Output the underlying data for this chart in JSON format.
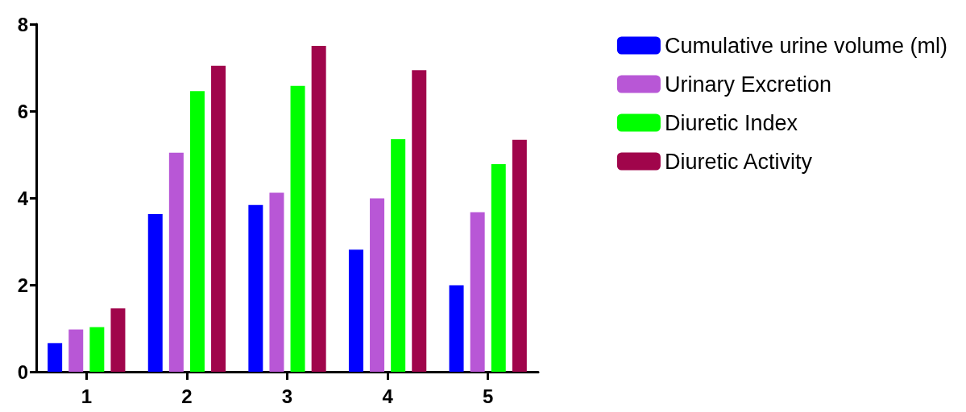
{
  "chart_data": {
    "type": "bar",
    "categories": [
      "1",
      "2",
      "3",
      "4",
      "5"
    ],
    "series": [
      {
        "name": "Cumulative urine volume (ml)",
        "color": "#0000ff",
        "values": [
          0.66,
          3.63,
          3.84,
          2.81,
          1.99
        ]
      },
      {
        "name": "Urinary Excretion",
        "color": "#b857d6",
        "values": [
          0.97,
          5.04,
          4.12,
          3.99,
          3.67
        ]
      },
      {
        "name": "Diuretic Index",
        "color": "#00ff00",
        "values": [
          1.03,
          6.46,
          6.58,
          5.35,
          4.78
        ]
      },
      {
        "name": "Diuretic Activity",
        "color": "#a0054b",
        "values": [
          1.46,
          7.04,
          7.5,
          6.94,
          5.34
        ]
      }
    ],
    "ylim": [
      0,
      8
    ],
    "yticks": [
      0,
      2,
      4,
      6,
      8
    ],
    "grid": false,
    "legend": "top right"
  }
}
